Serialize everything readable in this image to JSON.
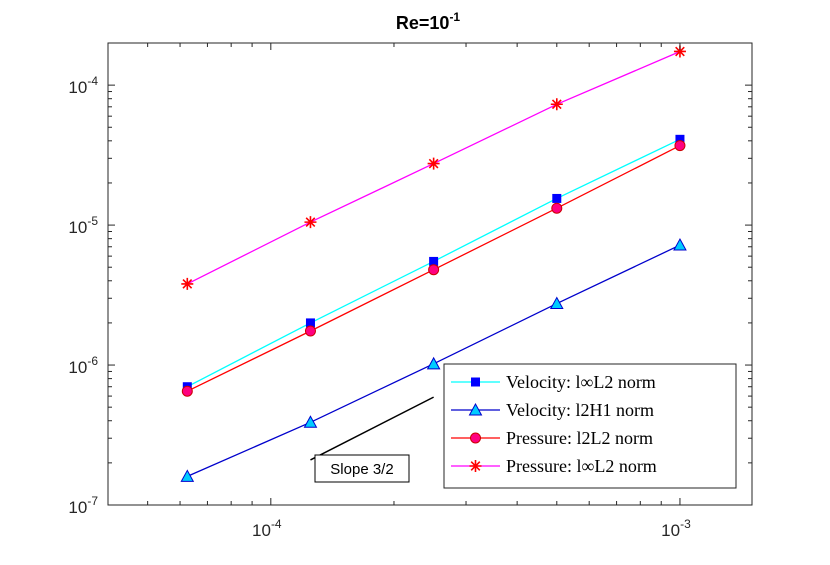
{
  "chart_data": {
    "type": "line",
    "title": "Re=10",
    "title_superscript": "-1",
    "xscale": "log",
    "yscale": "log",
    "xlim": [
      4e-05,
      0.0015
    ],
    "ylim": [
      1e-07,
      0.0002
    ],
    "xlabel": "",
    "ylabel": "",
    "grid": false,
    "legend_position": "bottom-right",
    "x": [
      6.25e-05,
      0.000125,
      0.00025,
      0.0005,
      0.001
    ],
    "x_ticks": [
      {
        "value": 0.0001,
        "base": "10",
        "exp": "-4"
      },
      {
        "value": 0.001,
        "base": "10",
        "exp": "-3"
      }
    ],
    "y_ticks": [
      {
        "value": 1e-07,
        "base": "10",
        "exp": "-7"
      },
      {
        "value": 1e-06,
        "base": "10",
        "exp": "-6"
      },
      {
        "value": 1e-05,
        "base": "10",
        "exp": "-5"
      },
      {
        "value": 0.0001,
        "base": "10",
        "exp": "-4"
      }
    ],
    "series": [
      {
        "name": "Velocity: l∞L2 norm",
        "line_color": "#00ffff",
        "marker": "square",
        "marker_color": "#0000ff",
        "values": [
          7e-07,
          2e-06,
          5.5e-06,
          1.55e-05,
          4.1e-05
        ]
      },
      {
        "name": "Velocity: l2H1 norm",
        "line_color": "#0000cc",
        "marker": "triangle",
        "marker_color": "#00ccff",
        "values": [
          1.6e-07,
          3.9e-07,
          1.02e-06,
          2.75e-06,
          7.2e-06
        ]
      },
      {
        "name": "Pressure: l2L2 norm",
        "line_color": "#ff0000",
        "marker": "circle",
        "marker_color": "#ff0080",
        "values": [
          6.5e-07,
          1.75e-06,
          4.8e-06,
          1.32e-05,
          3.7e-05
        ]
      },
      {
        "name": "Pressure: l∞L2 norm",
        "line_color": "#ff00ff",
        "marker": "star",
        "marker_color": "#ff0000",
        "values": [
          3.8e-06,
          1.05e-05,
          2.75e-05,
          7.3e-05,
          0.000174
        ]
      }
    ],
    "annotation": {
      "text": "Slope 3/2",
      "line_x": [
        0.000125,
        0.00025
      ],
      "line_y": [
        2.1e-07,
        5.9e-07
      ]
    }
  }
}
